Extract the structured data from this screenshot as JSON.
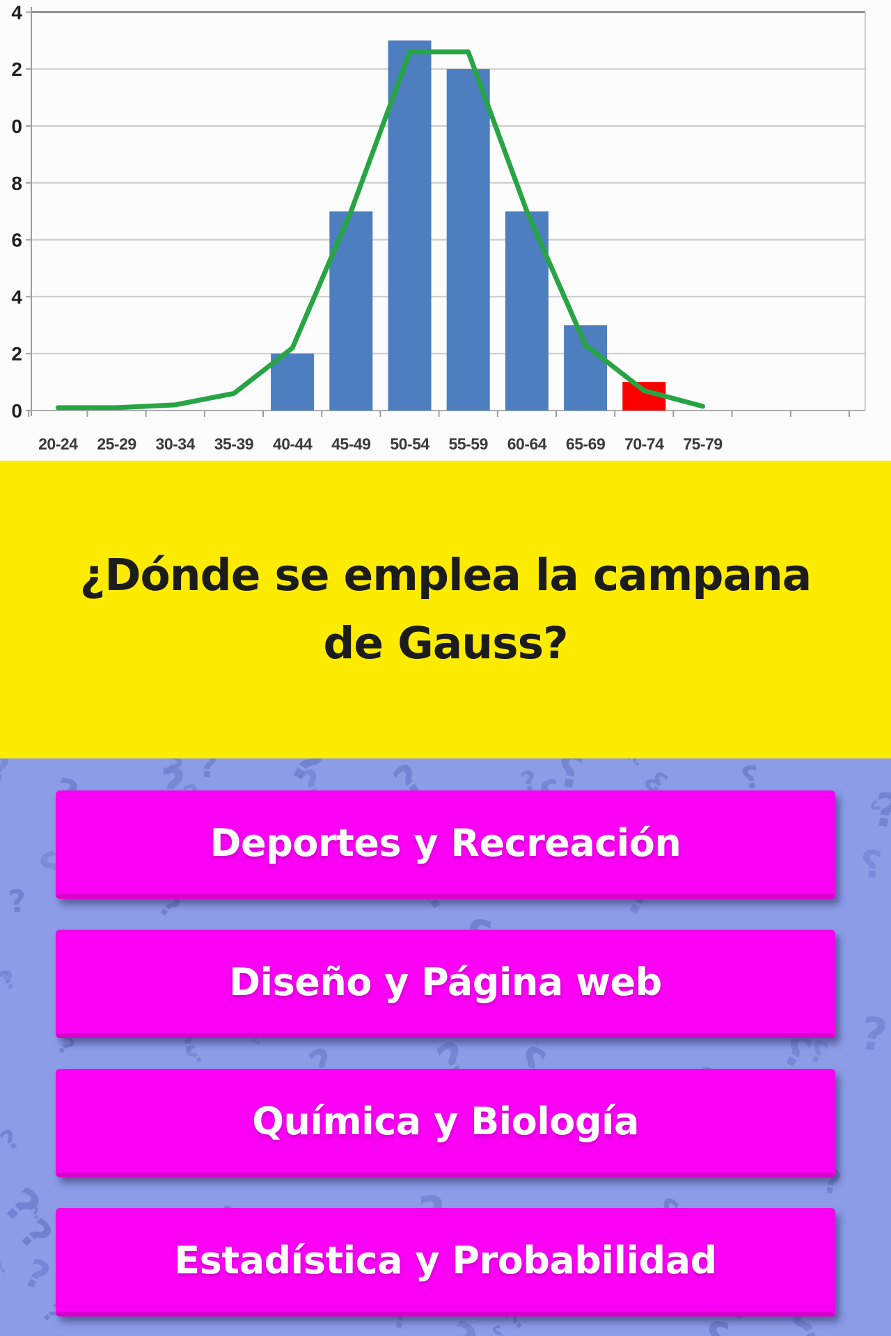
{
  "chart_data": {
    "type": "bar",
    "title": "",
    "xlabel": "",
    "ylabel": "",
    "categories": [
      "20-24",
      "25-29",
      "30-34",
      "35-39",
      "40-44",
      "45-49",
      "50-54",
      "55-59",
      "60-64",
      "65-69",
      "70-74",
      "75-79"
    ],
    "series": [
      {
        "type": "bar",
        "values": [
          0,
          0,
          0,
          0,
          2,
          7,
          13,
          12,
          7,
          3,
          1,
          0
        ],
        "color": "#4d7ebf",
        "highlight_index": 10,
        "highlight_color": "#fa0000"
      },
      {
        "type": "line",
        "values": [
          0.1,
          0.1,
          0.2,
          0.6,
          2.2,
          7,
          12.6,
          12.6,
          7,
          2.3,
          0.7,
          0.15
        ],
        "color": "#28a445"
      }
    ],
    "ylim": [
      0,
      14
    ],
    "y_step": 2,
    "y_axis_visible_digits": [
      "4",
      "2",
      "0",
      "8",
      "6",
      "4",
      "2",
      "0"
    ],
    "grid": true,
    "legend": false
  },
  "question": {
    "text": "¿Dónde se emplea la campana de Gauss?",
    "bg": "#fdec02",
    "color": "#1c1c1c"
  },
  "answers": {
    "options": [
      "Deportes y Recreación",
      "Diseño y Página web",
      "Química y Biología",
      "Estadística y Probabilidad"
    ],
    "button_bg": "#fa01f5",
    "text_color": "#ffffff"
  },
  "background": {
    "color": "#8c9ce7",
    "pattern_glyph": "?",
    "pattern_color": "#6e7ecd"
  }
}
